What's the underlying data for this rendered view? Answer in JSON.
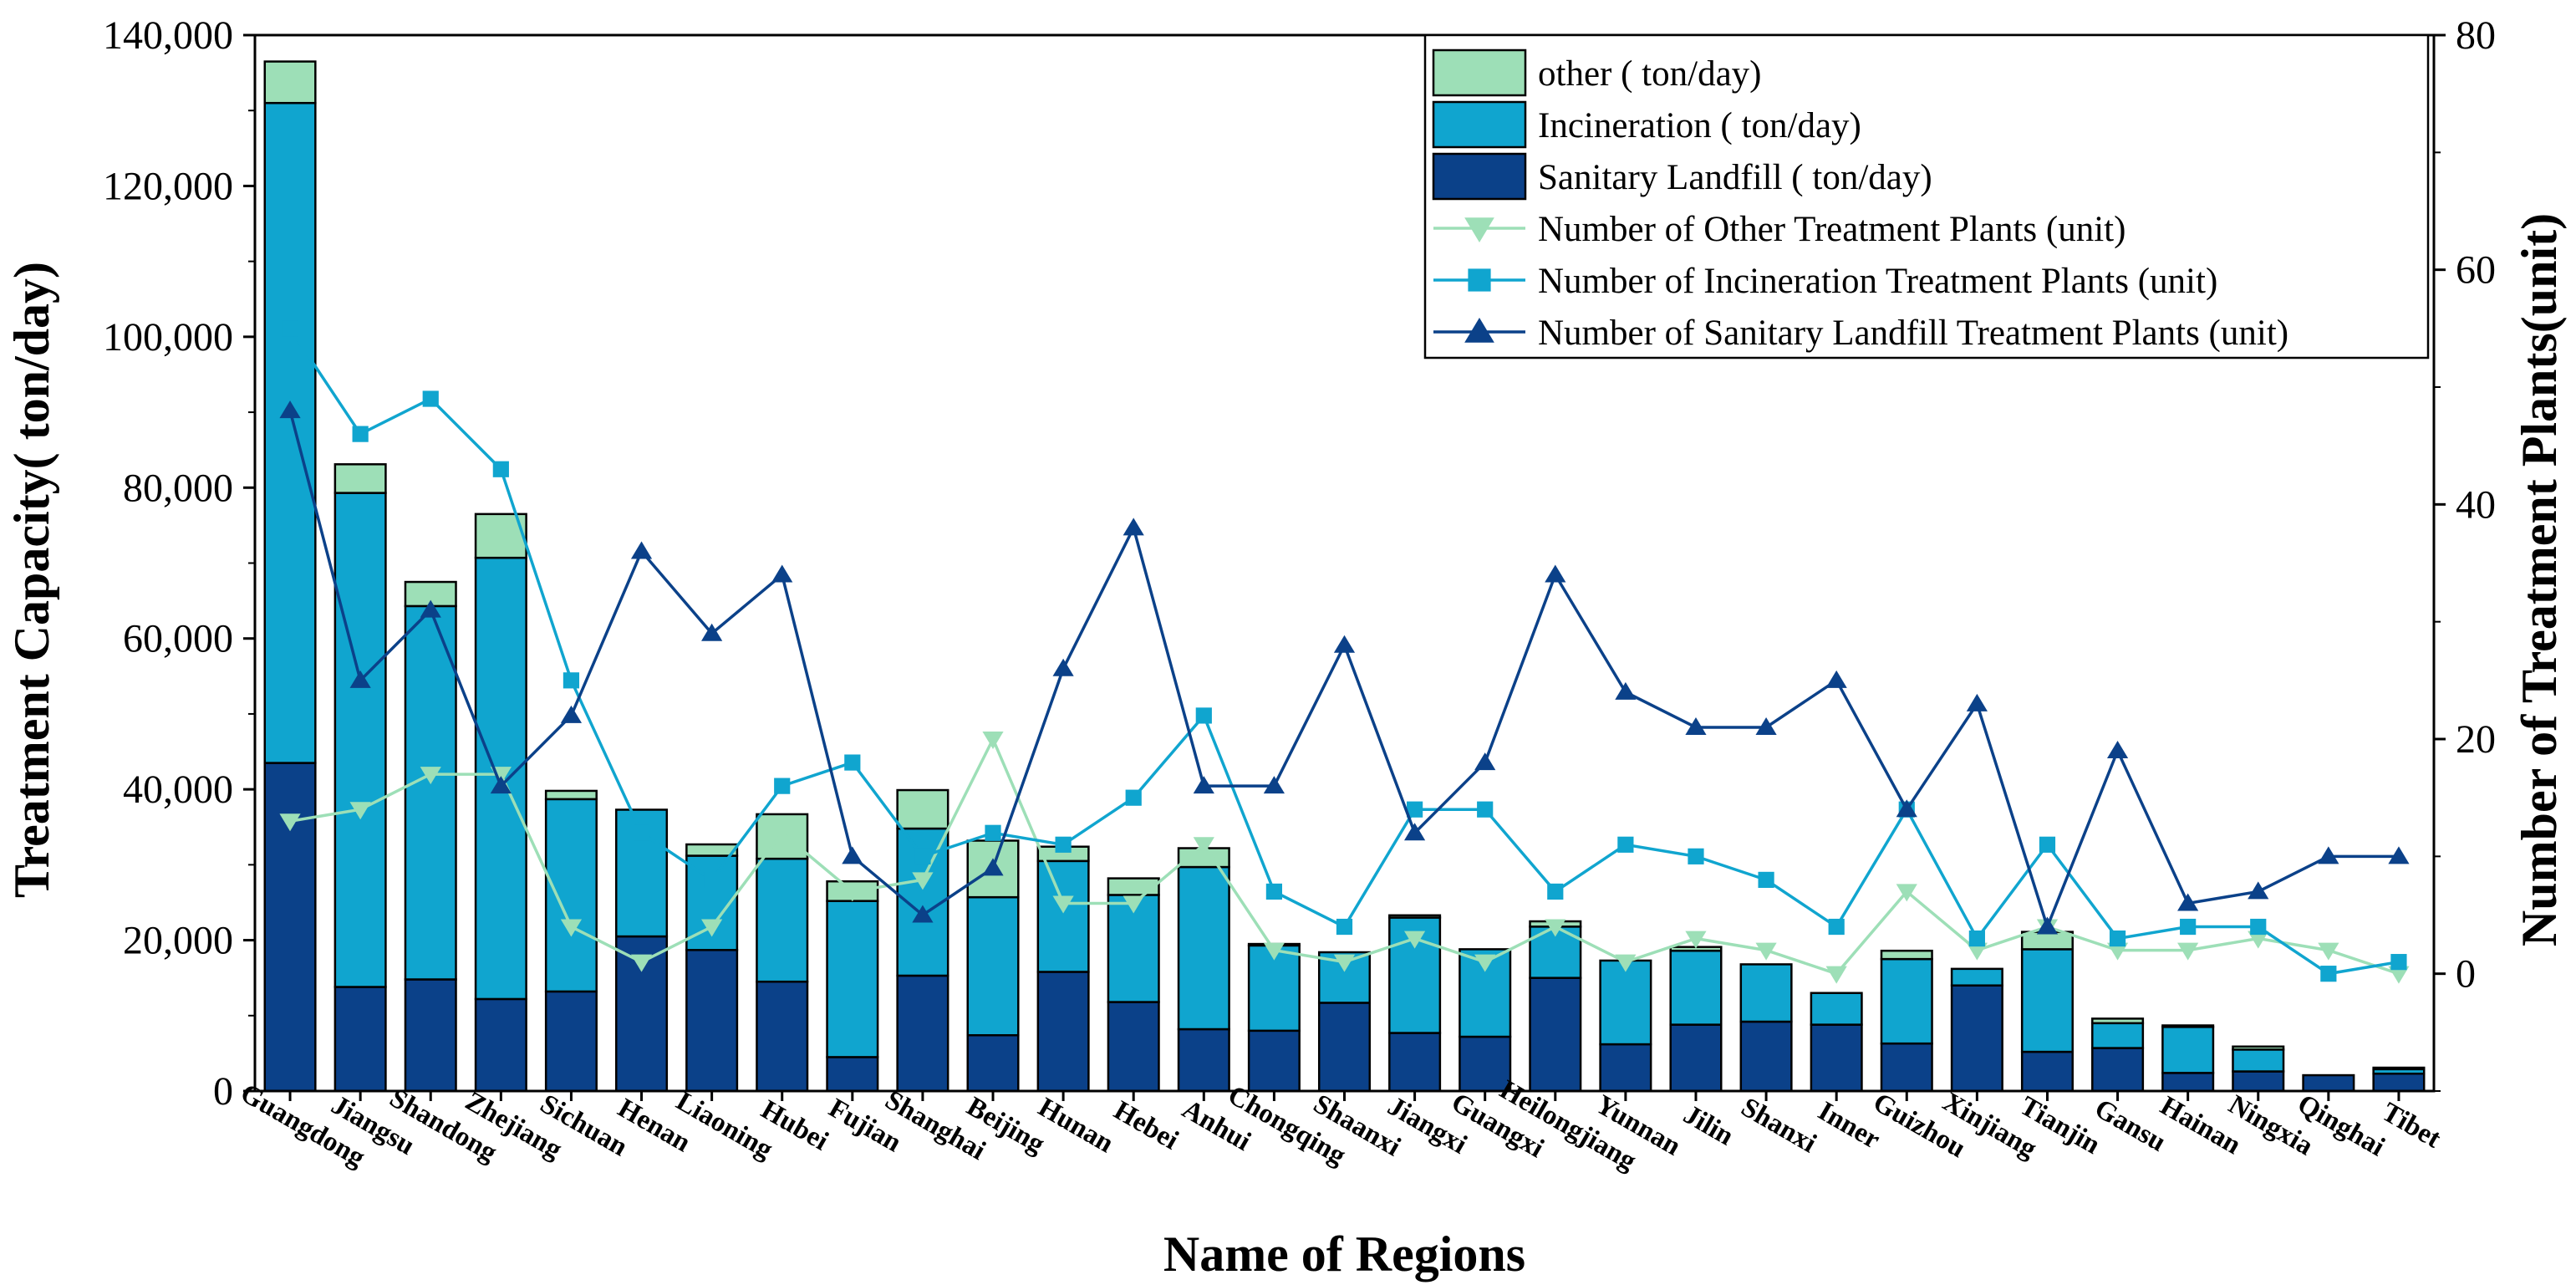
{
  "chart_data": {
    "type": "bar",
    "stacked": true,
    "title": "",
    "xlabel": "Name of Regions",
    "ylabel": "Treatment Capacity( ton/day)",
    "y2label": "Number of Treatment Plants(unit)",
    "ylim": [
      0,
      140000
    ],
    "y2lim": [
      -10,
      80
    ],
    "yticks": [
      0,
      20000,
      40000,
      60000,
      80000,
      100000,
      120000,
      140000
    ],
    "ytick_labels": [
      "0",
      "20,000",
      "40,000",
      "60,000",
      "80,000",
      "100,000",
      "120,000",
      "140,000"
    ],
    "y2ticks": [
      0,
      20,
      40,
      60,
      80
    ],
    "y2tick_labels": [
      "0",
      "20",
      "40",
      "60",
      "80"
    ],
    "legend_position": "top-right",
    "categories": [
      "Guangdong",
      "Jiangsu",
      "Shandong",
      "Zhejiang",
      "Sichuan",
      "Henan",
      "Liaoning",
      "Hubei",
      "Fujian",
      "Shanghai",
      "Beijing",
      "Hunan",
      "Hebei",
      "Anhui",
      "Chongqing",
      "Shaanxi",
      "Jiangxi",
      "Guangxi",
      "Heilongjiang",
      "Yunnan",
      "Jilin",
      "Shanxi",
      "Inner",
      "Guizhou",
      "Xinjiang",
      "Tianjin",
      "Gansu",
      "Hainan",
      "Ningxia",
      "Qinghai",
      "Tibet"
    ],
    "bar_series": [
      {
        "name": "Sanitary Landfill ( ton/day)",
        "color": "#0b4189",
        "values": [
          43500,
          13800,
          14800,
          12200,
          13200,
          20500,
          18700,
          14500,
          4500,
          15300,
          7400,
          15800,
          11800,
          8200,
          8000,
          11700,
          7700,
          7200,
          15000,
          6200,
          8800,
          9200,
          8800,
          6300,
          14000,
          5200,
          5700,
          2400,
          2600,
          2100,
          2300
        ]
      },
      {
        "name": "Incineration ( ton/day)",
        "color": "#10a5cf",
        "values": [
          87500,
          65500,
          49500,
          58500,
          25500,
          16800,
          12500,
          16300,
          20700,
          19500,
          18300,
          14700,
          14200,
          21500,
          11300,
          6700,
          15300,
          11600,
          6800,
          11100,
          9800,
          7600,
          4200,
          11200,
          2200,
          13600,
          3300,
          6100,
          2900,
          0,
          600
        ]
      },
      {
        "name": "other ( ton/day)",
        "color": "#9ddfb7",
        "values": [
          5500,
          3800,
          3200,
          5800,
          1100,
          0,
          1500,
          5900,
          2600,
          5100,
          7500,
          1900,
          2200,
          2500,
          200,
          0,
          300,
          0,
          700,
          0,
          500,
          0,
          0,
          1100,
          0,
          2300,
          600,
          200,
          400,
          0,
          200
        ]
      }
    ],
    "line_series": [
      {
        "name": "Number of Other Treatment Plants (unit)",
        "color": "#9ddfb7",
        "marker": "triangle-down",
        "values": [
          13,
          14,
          17,
          17,
          4,
          1,
          4,
          12,
          7,
          8,
          20,
          6,
          6,
          11,
          2,
          1,
          3,
          1,
          4,
          1,
          3,
          2,
          0,
          7,
          2,
          4,
          2,
          2,
          3,
          2,
          0
        ]
      },
      {
        "name": "Number of Incineration Treatment Plants (unit)",
        "color": "#10a5cf",
        "marker": "square",
        "values": [
          55,
          46,
          49,
          43,
          25,
          12,
          8,
          16,
          18,
          10,
          12,
          11,
          15,
          22,
          7,
          4,
          14,
          14,
          7,
          11,
          10,
          8,
          4,
          14,
          3,
          11,
          3,
          4,
          4,
          0,
          1
        ]
      },
      {
        "name": "Number of Sanitary Landfill Treatment Plants (unit)",
        "color": "#0b4189",
        "marker": "triangle-up",
        "values": [
          48,
          25,
          31,
          16,
          22,
          36,
          29,
          34,
          10,
          5,
          9,
          26,
          38,
          16,
          16,
          28,
          12,
          18,
          34,
          24,
          21,
          21,
          25,
          14,
          23,
          4,
          19,
          6,
          7,
          10,
          10
        ]
      }
    ]
  },
  "legend": {
    "items": [
      {
        "label": "other ( ton/day)",
        "kind": "bar",
        "color": "#9ddfb7"
      },
      {
        "label": "Incineration ( ton/day)",
        "kind": "bar",
        "color": "#10a5cf"
      },
      {
        "label": "Sanitary Landfill ( ton/day)",
        "kind": "bar",
        "color": "#0b4189"
      },
      {
        "label": "Number of Other Treatment Plants (unit)",
        "kind": "line",
        "color": "#9ddfb7",
        "marker": "triangle-down"
      },
      {
        "label": "Number of Incineration Treatment Plants (unit)",
        "kind": "line",
        "color": "#10a5cf",
        "marker": "square"
      },
      {
        "label": "Number of Sanitary Landfill Treatment Plants (unit)",
        "kind": "line",
        "color": "#0b4189",
        "marker": "triangle-up"
      }
    ]
  }
}
